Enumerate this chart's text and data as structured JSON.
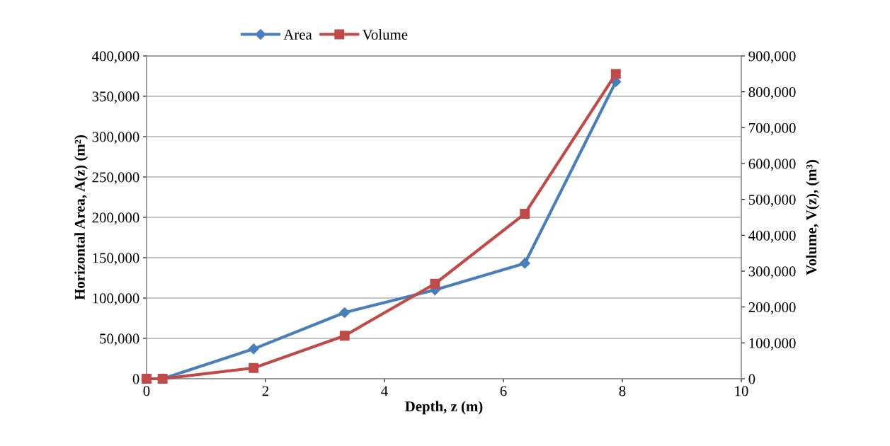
{
  "chart_data": {
    "type": "line",
    "xlabel": "Depth, z (m)",
    "ylabel": "Horizontal Area, A(z) (m²)",
    "y2label": "Volume, V(z), (m³)",
    "x": [
      0,
      0.27,
      1.8,
      3.33,
      4.85,
      6.36,
      7.89
    ],
    "series": [
      {
        "name": "Area",
        "color": "#4a7ebb",
        "marker": "diamond",
        "values": [
          0,
          0,
          37000,
          82000,
          110000,
          143000,
          368000
        ]
      },
      {
        "name": "Volume",
        "color": "#be4b48",
        "marker": "square",
        "axis": "y2",
        "values": [
          0,
          0,
          30000,
          120000,
          265000,
          460000,
          850000
        ]
      }
    ],
    "xlim": [
      0,
      10
    ],
    "xticks": [
      0,
      2,
      4,
      6,
      8,
      10
    ],
    "ylim": [
      0,
      400000
    ],
    "yticks": [
      {
        "value": 0,
        "label": "0"
      },
      {
        "value": 50000,
        "label": "50,000"
      },
      {
        "value": 100000,
        "label": "100,000"
      },
      {
        "value": 150000,
        "label": "150,000"
      },
      {
        "value": 200000,
        "label": "200,000"
      },
      {
        "value": 250000,
        "label": "250,000"
      },
      {
        "value": 300000,
        "label": "300,000"
      },
      {
        "value": 350000,
        "label": "350,000"
      },
      {
        "value": 400000,
        "label": "400,000"
      }
    ],
    "y2lim": [
      0,
      900000
    ],
    "y2ticks": [
      {
        "value": 0,
        "label": "0"
      },
      {
        "value": 100000,
        "label": "100,000"
      },
      {
        "value": 200000,
        "label": "200,000"
      },
      {
        "value": 300000,
        "label": "300,000"
      },
      {
        "value": 400000,
        "label": "400,000"
      },
      {
        "value": 500000,
        "label": "500,000"
      },
      {
        "value": 600000,
        "label": "600,000"
      },
      {
        "value": 700000,
        "label": "700,000"
      },
      {
        "value": 800000,
        "label": "800,000"
      },
      {
        "value": 900000,
        "label": "900,000"
      }
    ],
    "grid": "y",
    "legend": "top",
    "line_style": "solid"
  }
}
